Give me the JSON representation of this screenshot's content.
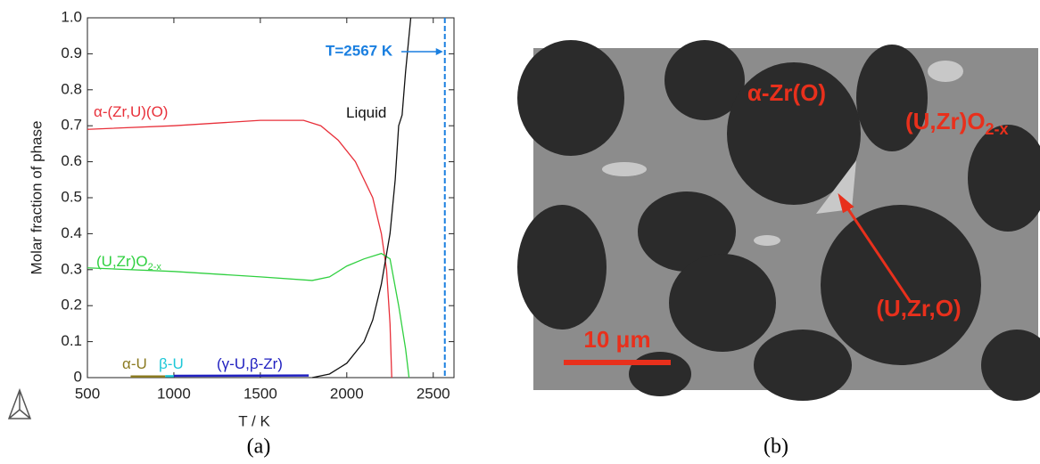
{
  "chart_data": {
    "type": "line",
    "xlabel": "T / K",
    "ylabel": "Molar fraction of phase",
    "xlim": [
      500,
      2620
    ],
    "ylim": [
      0,
      1
    ],
    "xticks": [
      500,
      1000,
      1500,
      2000,
      2500
    ],
    "yticks": [
      0,
      0.1,
      0.2,
      0.3,
      0.4,
      0.5,
      0.6,
      0.7,
      0.8,
      0.9,
      {
        "value": 1,
        "label": "1.0"
      }
    ],
    "series": [
      {
        "name": "α-(Zr,U)(O)",
        "color": "#e8303a",
        "x": [
          500,
          1000,
          1500,
          1750,
          1850,
          1950,
          2050,
          2150,
          2200,
          2230,
          2250,
          2260
        ],
        "values": [
          0.69,
          0.7,
          0.715,
          0.715,
          0.7,
          0.66,
          0.6,
          0.5,
          0.4,
          0.3,
          0.15,
          0
        ]
      },
      {
        "name": "(U,Zr)O",
        "name_subscript": "2-x",
        "color": "#30d040",
        "x": [
          500,
          1000,
          1500,
          1800,
          1900,
          2000,
          2100,
          2200,
          2250,
          2300,
          2340,
          2360
        ],
        "values": [
          0.305,
          0.295,
          0.28,
          0.27,
          0.28,
          0.31,
          0.33,
          0.345,
          0.33,
          0.2,
          0.08,
          0
        ]
      },
      {
        "name": "Liquid",
        "color": "#111111",
        "x": [
          1800,
          1900,
          2000,
          2100,
          2150,
          2200,
          2250,
          2280,
          2300,
          2320,
          2340,
          2370
        ],
        "values": [
          0,
          0.01,
          0.04,
          0.1,
          0.16,
          0.26,
          0.4,
          0.55,
          0.7,
          0.73,
          0.85,
          1
        ]
      },
      {
        "name": "α-U",
        "color": "#8a7a20",
        "x": [
          750,
          950
        ],
        "values": [
          0.003,
          0.003
        ]
      },
      {
        "name": "β-U",
        "color": "#1ec8d8",
        "x": [
          950,
          1000
        ],
        "values": [
          0.004,
          0.004
        ]
      },
      {
        "name": "(γ-U,β-Zr)",
        "color": "#2020c0",
        "x": [
          1000,
          1780
        ],
        "values": [
          0.005,
          0.006
        ]
      }
    ],
    "annotation": {
      "text": "T=2567 K",
      "x": 2567,
      "color": "#1a7fe0"
    }
  },
  "captions": [
    "(a)",
    "(b)"
  ],
  "micrograph": {
    "labels": [
      {
        "text": "α-Zr(O)"
      },
      {
        "text": "(U,Zr)O",
        "subscript": "2-x"
      },
      {
        "text": "(U,Zr,O)"
      }
    ],
    "scale_bar": "10 μm"
  }
}
